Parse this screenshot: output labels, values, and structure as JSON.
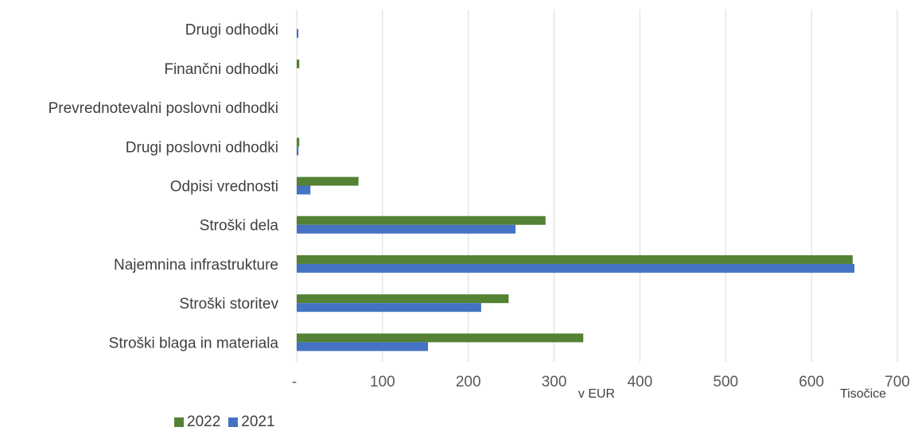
{
  "chart_data": {
    "type": "bar",
    "orientation": "horizontal",
    "categories": [
      "Drugi odhodki",
      "Finančni odhodki",
      "Prevrednotevalni poslovni odhodki",
      "Drugi poslovni odhodki",
      "Odpisi vrednosti",
      "Stroški dela",
      "Najemnina infrastrukture",
      "Stroški storitev",
      "Stroški blaga in materiala"
    ],
    "series": [
      {
        "name": "2022",
        "color": "#548235",
        "values": [
          0,
          3,
          0,
          3,
          72,
          290,
          648,
          247,
          334
        ]
      },
      {
        "name": "2021",
        "color": "#4472c4",
        "values": [
          2,
          0,
          0,
          2,
          16,
          255,
          650,
          215,
          153
        ]
      }
    ],
    "x_ticks": [
      "-",
      "100",
      "200",
      "300",
      "400",
      "500",
      "600",
      "700"
    ],
    "xlim": [
      0,
      700
    ],
    "xlabel": "v EUR",
    "unit_label": "Tisočice",
    "grid": true,
    "legend_position": "bottom-left"
  }
}
